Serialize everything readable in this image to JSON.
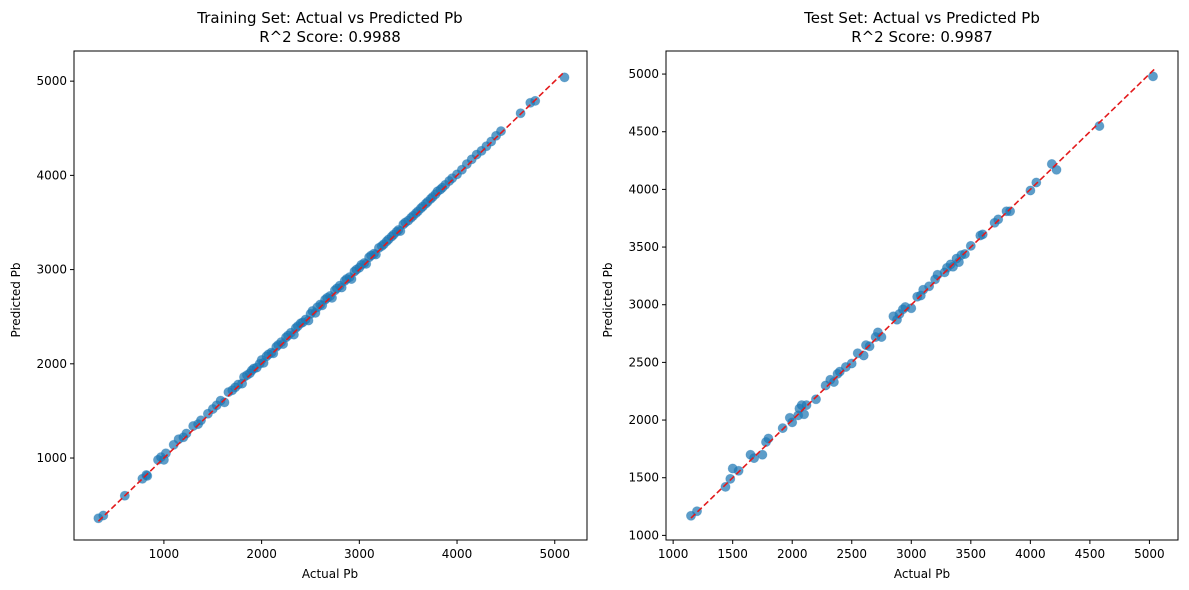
{
  "chart_data": [
    {
      "type": "scatter",
      "title_line1": "Training Set: Actual vs Predicted Pb",
      "title_line2": "R^2 Score: 0.9988",
      "xlabel": "Actual Pb",
      "ylabel": "Predicted Pb",
      "xlim": [
        80,
        5330
      ],
      "ylim": [
        130,
        5320
      ],
      "xticks": [
        1000,
        2000,
        3000,
        4000,
        5000
      ],
      "yticks": [
        1000,
        2000,
        3000,
        4000,
        5000
      ],
      "xtick_labels": [
        "1000",
        "2000",
        "3000",
        "4000",
        "5000"
      ],
      "ytick_labels": [
        "1000",
        "2000",
        "3000",
        "4000",
        "5000"
      ],
      "ideal_line": [
        [
          330,
          330
        ],
        [
          5100,
          5100
        ]
      ],
      "marker_color": "#1f77b4",
      "line_color": "#e31a1c",
      "points": [
        [
          330,
          360
        ],
        [
          380,
          390
        ],
        [
          600,
          600
        ],
        [
          780,
          780
        ],
        [
          820,
          820
        ],
        [
          830,
          810
        ],
        [
          940,
          980
        ],
        [
          970,
          1010
        ],
        [
          1000,
          980
        ],
        [
          1020,
          1050
        ],
        [
          1100,
          1140
        ],
        [
          1150,
          1200
        ],
        [
          1200,
          1220
        ],
        [
          1230,
          1260
        ],
        [
          1300,
          1340
        ],
        [
          1350,
          1360
        ],
        [
          1380,
          1400
        ],
        [
          1450,
          1470
        ],
        [
          1500,
          1520
        ],
        [
          1540,
          1560
        ],
        [
          1580,
          1610
        ],
        [
          1620,
          1590
        ],
        [
          1660,
          1700
        ],
        [
          1700,
          1720
        ],
        [
          1730,
          1750
        ],
        [
          1760,
          1780
        ],
        [
          1800,
          1790
        ],
        [
          1820,
          1860
        ],
        [
          1850,
          1880
        ],
        [
          1880,
          1900
        ],
        [
          1900,
          1930
        ],
        [
          1920,
          1950
        ],
        [
          1950,
          1960
        ],
        [
          1980,
          2000
        ],
        [
          2000,
          2040
        ],
        [
          2020,
          2010
        ],
        [
          2050,
          2080
        ],
        [
          2070,
          2100
        ],
        [
          2100,
          2120
        ],
        [
          2120,
          2110
        ],
        [
          2150,
          2180
        ],
        [
          2170,
          2200
        ],
        [
          2200,
          2230
        ],
        [
          2220,
          2210
        ],
        [
          2250,
          2280
        ],
        [
          2270,
          2300
        ],
        [
          2300,
          2330
        ],
        [
          2330,
          2310
        ],
        [
          2350,
          2380
        ],
        [
          2370,
          2400
        ],
        [
          2400,
          2430
        ],
        [
          2420,
          2440
        ],
        [
          2450,
          2470
        ],
        [
          2480,
          2460
        ],
        [
          2500,
          2530
        ],
        [
          2520,
          2560
        ],
        [
          2550,
          2540
        ],
        [
          2570,
          2600
        ],
        [
          2600,
          2630
        ],
        [
          2620,
          2620
        ],
        [
          2650,
          2680
        ],
        [
          2670,
          2700
        ],
        [
          2700,
          2720
        ],
        [
          2720,
          2700
        ],
        [
          2750,
          2780
        ],
        [
          2770,
          2800
        ],
        [
          2800,
          2830
        ],
        [
          2820,
          2810
        ],
        [
          2850,
          2880
        ],
        [
          2870,
          2900
        ],
        [
          2900,
          2920
        ],
        [
          2920,
          2900
        ],
        [
          2950,
          2980
        ],
        [
          2970,
          3000
        ],
        [
          3000,
          3020
        ],
        [
          3020,
          3050
        ],
        [
          3050,
          3070
        ],
        [
          3070,
          3060
        ],
        [
          3100,
          3130
        ],
        [
          3120,
          3150
        ],
        [
          3150,
          3170
        ],
        [
          3170,
          3160
        ],
        [
          3200,
          3230
        ],
        [
          3230,
          3250
        ],
        [
          3250,
          3270
        ],
        [
          3280,
          3300
        ],
        [
          3300,
          3320
        ],
        [
          3330,
          3350
        ],
        [
          3350,
          3370
        ],
        [
          3380,
          3400
        ],
        [
          3400,
          3420
        ],
        [
          3420,
          3410
        ],
        [
          3450,
          3480
        ],
        [
          3470,
          3500
        ],
        [
          3500,
          3520
        ],
        [
          3530,
          3550
        ],
        [
          3550,
          3570
        ],
        [
          3580,
          3600
        ],
        [
          3600,
          3620
        ],
        [
          3630,
          3650
        ],
        [
          3650,
          3670
        ],
        [
          3680,
          3700
        ],
        [
          3700,
          3720
        ],
        [
          3730,
          3750
        ],
        [
          3750,
          3770
        ],
        [
          3780,
          3800
        ],
        [
          3800,
          3830
        ],
        [
          3830,
          3850
        ],
        [
          3850,
          3870
        ],
        [
          3880,
          3900
        ],
        [
          3920,
          3940
        ],
        [
          3950,
          3970
        ],
        [
          4000,
          4010
        ],
        [
          4050,
          4060
        ],
        [
          4100,
          4120
        ],
        [
          4150,
          4170
        ],
        [
          4200,
          4220
        ],
        [
          4250,
          4260
        ],
        [
          4300,
          4310
        ],
        [
          4350,
          4360
        ],
        [
          4400,
          4420
        ],
        [
          4450,
          4470
        ],
        [
          4650,
          4660
        ],
        [
          4750,
          4770
        ],
        [
          4800,
          4790
        ],
        [
          5100,
          5040
        ]
      ]
    },
    {
      "type": "scatter",
      "title_line1": "Test Set: Actual vs Predicted Pb",
      "title_line2": "R^2 Score: 0.9987",
      "xlabel": "Actual Pb",
      "ylabel": "Predicted Pb",
      "xlim": [
        940,
        5240
      ],
      "ylim": [
        960,
        5200
      ],
      "xticks": [
        1000,
        1500,
        2000,
        2500,
        3000,
        3500,
        4000,
        4500,
        5000
      ],
      "yticks": [
        1000,
        1500,
        2000,
        2500,
        3000,
        3500,
        4000,
        4500,
        5000
      ],
      "xtick_labels": [
        "1000",
        "1500",
        "2000",
        "2500",
        "3000",
        "3500",
        "4000",
        "4500",
        "5000"
      ],
      "ytick_labels": [
        "1000",
        "1500",
        "2000",
        "2500",
        "3000",
        "3500",
        "4000",
        "4500",
        "5000"
      ],
      "ideal_line": [
        [
          1150,
          1150
        ],
        [
          5040,
          5040
        ]
      ],
      "marker_color": "#1f77b4",
      "line_color": "#e31a1c",
      "points": [
        [
          1150,
          1170
        ],
        [
          1200,
          1210
        ],
        [
          1440,
          1420
        ],
        [
          1480,
          1490
        ],
        [
          1500,
          1580
        ],
        [
          1550,
          1560
        ],
        [
          1650,
          1700
        ],
        [
          1680,
          1670
        ],
        [
          1750,
          1700
        ],
        [
          1780,
          1810
        ],
        [
          1800,
          1840
        ],
        [
          1920,
          1930
        ],
        [
          1980,
          2020
        ],
        [
          2000,
          1980
        ],
        [
          2050,
          2040
        ],
        [
          2060,
          2100
        ],
        [
          2080,
          2130
        ],
        [
          2100,
          2050
        ],
        [
          2120,
          2130
        ],
        [
          2200,
          2180
        ],
        [
          2280,
          2300
        ],
        [
          2320,
          2350
        ],
        [
          2350,
          2330
        ],
        [
          2380,
          2400
        ],
        [
          2400,
          2420
        ],
        [
          2450,
          2460
        ],
        [
          2500,
          2490
        ],
        [
          2550,
          2580
        ],
        [
          2600,
          2560
        ],
        [
          2620,
          2650
        ],
        [
          2650,
          2640
        ],
        [
          2700,
          2720
        ],
        [
          2720,
          2760
        ],
        [
          2750,
          2720
        ],
        [
          2850,
          2900
        ],
        [
          2880,
          2870
        ],
        [
          2900,
          2920
        ],
        [
          2930,
          2960
        ],
        [
          2950,
          2980
        ],
        [
          3000,
          2970
        ],
        [
          3050,
          3070
        ],
        [
          3080,
          3080
        ],
        [
          3100,
          3130
        ],
        [
          3150,
          3160
        ],
        [
          3200,
          3220
        ],
        [
          3220,
          3260
        ],
        [
          3280,
          3280
        ],
        [
          3300,
          3320
        ],
        [
          3330,
          3350
        ],
        [
          3350,
          3330
        ],
        [
          3380,
          3400
        ],
        [
          3400,
          3370
        ],
        [
          3420,
          3430
        ],
        [
          3450,
          3440
        ],
        [
          3500,
          3510
        ],
        [
          3580,
          3600
        ],
        [
          3600,
          3610
        ],
        [
          3700,
          3710
        ],
        [
          3730,
          3740
        ],
        [
          3800,
          3810
        ],
        [
          3830,
          3810
        ],
        [
          4000,
          3990
        ],
        [
          4050,
          4060
        ],
        [
          4180,
          4220
        ],
        [
          4220,
          4170
        ],
        [
          4580,
          4550
        ],
        [
          5030,
          4980
        ]
      ]
    }
  ]
}
